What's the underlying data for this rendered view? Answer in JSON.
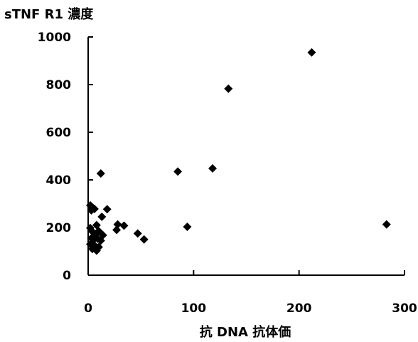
{
  "chart_data": {
    "type": "scatter",
    "title": "",
    "ylabel": "sTNF R1 濃度",
    "xlabel": "抗 DNA 抗体価",
    "xlim": [
      0,
      300
    ],
    "ylim": [
      0,
      1000
    ],
    "x_ticks": [
      "0",
      "100",
      "200",
      "300"
    ],
    "y_ticks": [
      "0",
      "200",
      "400",
      "600",
      "800",
      "1000"
    ],
    "grid": false,
    "legend": "none",
    "marker": "diamond",
    "marker_color": "#000000",
    "points": [
      {
        "x": 212,
        "y": 935
      },
      {
        "x": 133,
        "y": 783
      },
      {
        "x": 118,
        "y": 448
      },
      {
        "x": 85,
        "y": 435
      },
      {
        "x": 12,
        "y": 427
      },
      {
        "x": 283,
        "y": 213
      },
      {
        "x": 94,
        "y": 203
      },
      {
        "x": 2,
        "y": 293
      },
      {
        "x": 3,
        "y": 272
      },
      {
        "x": 4,
        "y": 285
      },
      {
        "x": 6,
        "y": 278
      },
      {
        "x": 18,
        "y": 277
      },
      {
        "x": 13,
        "y": 245
      },
      {
        "x": 8,
        "y": 210
      },
      {
        "x": 28,
        "y": 213
      },
      {
        "x": 34,
        "y": 208
      },
      {
        "x": 27,
        "y": 190
      },
      {
        "x": 47,
        "y": 175
      },
      {
        "x": 53,
        "y": 150
      },
      {
        "x": 2,
        "y": 198
      },
      {
        "x": 4,
        "y": 183
      },
      {
        "x": 7,
        "y": 173
      },
      {
        "x": 10,
        "y": 185
      },
      {
        "x": 14,
        "y": 168
      },
      {
        "x": 3,
        "y": 155
      },
      {
        "x": 5,
        "y": 148
      },
      {
        "x": 9,
        "y": 153
      },
      {
        "x": 12,
        "y": 145
      },
      {
        "x": 2,
        "y": 130
      },
      {
        "x": 6,
        "y": 125
      },
      {
        "x": 10,
        "y": 118
      },
      {
        "x": 4,
        "y": 110
      },
      {
        "x": 8,
        "y": 103
      }
    ]
  }
}
